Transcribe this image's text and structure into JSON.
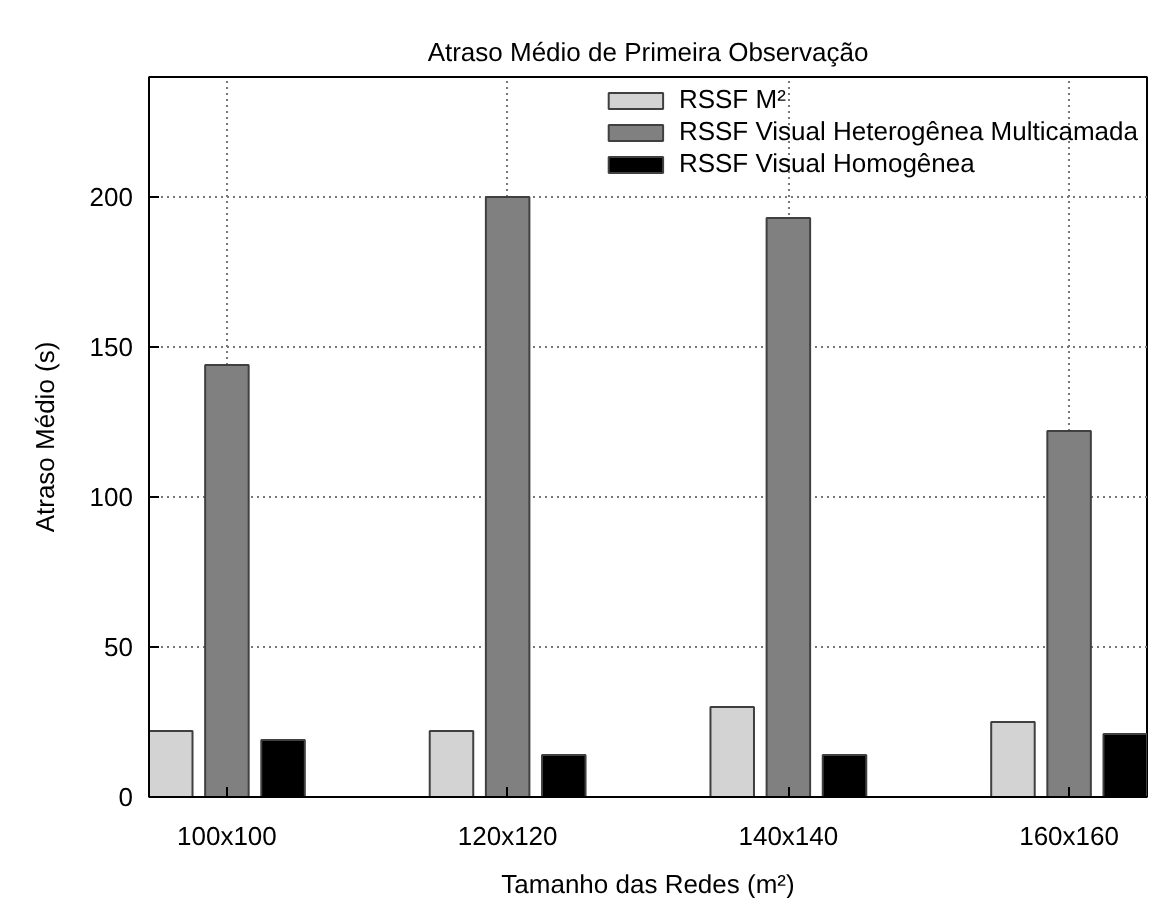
{
  "chart_data": {
    "type": "bar",
    "title": "Atraso Médio de Primeira Observação",
    "xlabel": "Tamanho das Redes (m²)",
    "ylabel": "Atraso Médio (s)",
    "categories": [
      "100x100",
      "120x120",
      "140x140",
      "160x160"
    ],
    "series": [
      {
        "name": "RSSF M²",
        "color": "#d3d3d3",
        "values": [
          22,
          22,
          30,
          25
        ]
      },
      {
        "name": "RSSF Visual Heterogênea Multicamada",
        "color": "#808080",
        "values": [
          144,
          200,
          193,
          122
        ]
      },
      {
        "name": "RSSF Visual Homogênea",
        "color": "#000000",
        "values": [
          19,
          14,
          14,
          21
        ]
      }
    ],
    "ylim": [
      0,
      240
    ],
    "yticks": [
      0,
      50,
      100,
      150,
      200
    ],
    "grid": true,
    "legend": "top right"
  }
}
